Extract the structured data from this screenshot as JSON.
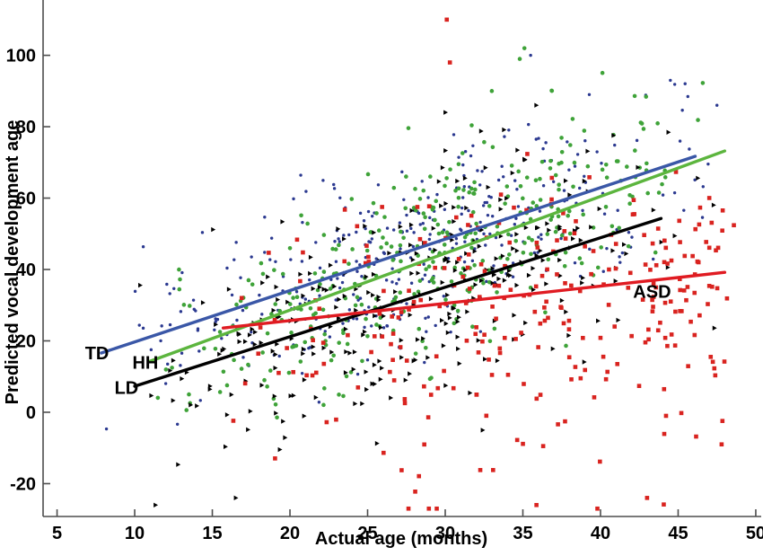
{
  "figure": {
    "xlabel": "Actual age (months)",
    "ylabel": "Predicted vocal development age"
  },
  "chart_data": {
    "type": "scatter",
    "title": "",
    "xlabel": "Actual age (months)",
    "ylabel": "Predicted vocal development age",
    "xlim": [
      4.1,
      50.35
    ],
    "ylim": [
      -29.2,
      115.5
    ],
    "xticks": [
      5,
      10,
      15,
      20,
      25,
      30,
      35,
      40,
      45,
      50
    ],
    "yticks": [
      -20,
      0,
      20,
      40,
      60,
      80,
      100
    ],
    "grid": false,
    "legend_position": "inline-labels",
    "axis_color": "#4d4d4d",
    "series": [
      {
        "name": "TD",
        "label": "TD",
        "marker": "dot",
        "point_color": "#2b3990",
        "line_color": "#3a57a7",
        "regression_line": {
          "x1": 7.85,
          "y1": 16.6,
          "x2": 46.1,
          "y2": 71.7
        },
        "fit": {
          "slope": 1.44,
          "intercept": 5.3
        },
        "label_pos": [
          6.8,
          14.9
        ],
        "label_anchor": "start",
        "scatter": {
          "seed": 11,
          "n": 360,
          "x_min": 7.5,
          "x_max": 48.6,
          "x_dist": "tri",
          "sd": 13.0,
          "y_min": -12,
          "y_max": 102,
          "tail_p": 0,
          "tail_lo": 0,
          "tail_hi": 0
        },
        "extra_points": [
          [
            35.5,
            100
          ],
          [
            44.5,
            93
          ],
          [
            47.5,
            86
          ]
        ]
      },
      {
        "name": "HH",
        "label": "HH",
        "marker": "circle",
        "point_color": "#3fa339",
        "line_color": "#5cb53e",
        "regression_line": {
          "x1": 11.0,
          "y1": 14.3,
          "x2": 48.0,
          "y2": 73.2
        },
        "fit": {
          "slope": 1.59,
          "intercept": -3.2
        },
        "label_pos": [
          9.85,
          12.2
        ],
        "label_anchor": "start",
        "scatter": {
          "seed": 22,
          "n": 360,
          "x_min": 10.5,
          "x_max": 48.5,
          "x_dist": "tri",
          "sd": 13.5,
          "y_min": -22,
          "y_max": 104,
          "tail_p": 0,
          "tail_lo": 0,
          "tail_hi": 0
        },
        "extra_points": [
          [
            35.1,
            102
          ],
          [
            34.8,
            99
          ],
          [
            33.0,
            90
          ]
        ]
      },
      {
        "name": "LD",
        "label": "LD",
        "marker": "triangle-right",
        "point_color": "#000000",
        "line_color": "#000000",
        "regression_line": {
          "x1": 10.0,
          "y1": 7.3,
          "x2": 43.9,
          "y2": 54.3
        },
        "fit": {
          "slope": 1.39,
          "intercept": -6.6
        },
        "label_pos": [
          8.7,
          5.2
        ],
        "label_anchor": "start",
        "scatter": {
          "seed": 33,
          "n": 300,
          "x_min": 9.0,
          "x_max": 48.0,
          "x_dist": "tri",
          "sd": 15.0,
          "y_min": -26,
          "y_max": 86,
          "tail_p": 0.07,
          "tail_lo": 5,
          "tail_hi": 22
        },
        "extra_points": [
          [
            30.0,
            84
          ],
          [
            16.5,
            -24
          ]
        ]
      },
      {
        "name": "ASD",
        "label": "ASD",
        "marker": "square",
        "point_color": "#d9231f",
        "line_color": "#e01b22",
        "regression_line": {
          "x1": 15.7,
          "y1": 23.6,
          "x2": 48.0,
          "y2": 39.2
        },
        "fit": {
          "slope": 0.48,
          "intercept": 16.1
        },
        "label_pos": [
          42.1,
          32.1
        ],
        "label_anchor": "start",
        "scatter": {
          "seed": 44,
          "n": 280,
          "x_min": 15.5,
          "x_max": 48.6,
          "x_dist": "right",
          "sd": 17.0,
          "y_min": -27,
          "y_max": 110,
          "tail_p": 0.22,
          "tail_lo": 8,
          "tail_hi": 38
        },
        "extra_points": [
          [
            30.1,
            110
          ],
          [
            30.3,
            98
          ],
          [
            43.0,
            -24
          ],
          [
            47.8,
            -9
          ],
          [
            39.8,
            -27
          ]
        ]
      }
    ]
  }
}
